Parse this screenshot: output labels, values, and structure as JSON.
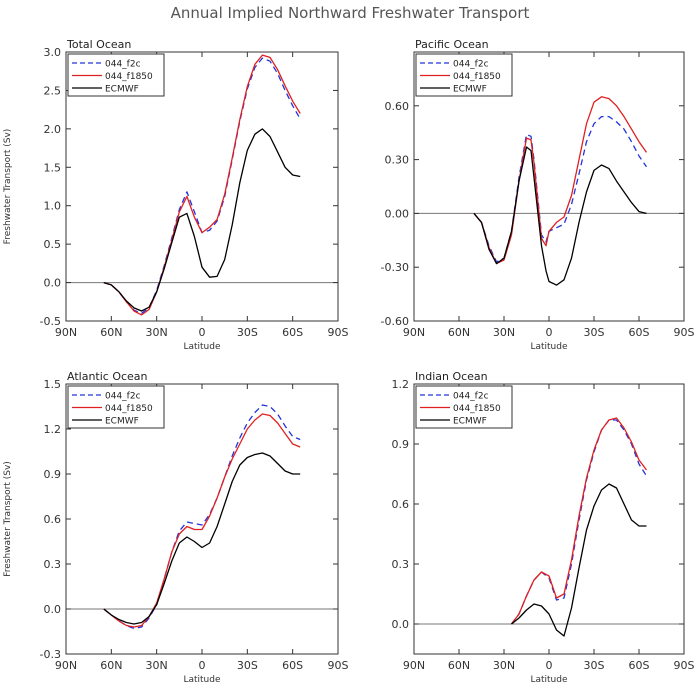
{
  "figure": {
    "title": "Annual Implied Northward Freshwater Transport"
  },
  "colors": {
    "f2c": "#2233dd",
    "f1850": "#e02020",
    "ecmwf": "#000000",
    "zero_line": "#777777",
    "frame": "#333333"
  },
  "chart_data": [
    {
      "type": "line",
      "title": "Total Ocean",
      "xlabel": "Latitude",
      "ylabel": "Freshwater Transport (Sv)",
      "xlim": [
        -90,
        90
      ],
      "xticks": [
        -90,
        -60,
        -30,
        0,
        30,
        60,
        90
      ],
      "xtick_labels": [
        "90N",
        "60N",
        "30N",
        "0",
        "30S",
        "60S",
        "90S"
      ],
      "ylim": [
        -0.5,
        3.0
      ],
      "yticks": [
        -0.5,
        0.0,
        0.5,
        1.0,
        1.5,
        2.0,
        2.5,
        3.0
      ],
      "ytick_labels": [
        "-0.5",
        "0.0",
        "0.5",
        "1.0",
        "1.5",
        "2.0",
        "2.5",
        "3.0"
      ],
      "legend": [
        "044_f2c",
        "044_f1850",
        "ECMWF"
      ],
      "series": [
        {
          "name": "044_f2c",
          "style": "dashed",
          "color_key": "f2c",
          "x": [
            -65,
            -60,
            -55,
            -50,
            -45,
            -40,
            -35,
            -30,
            -25,
            -20,
            -15,
            -10,
            -5,
            0,
            5,
            10,
            15,
            20,
            25,
            30,
            35,
            40,
            45,
            50,
            55,
            60,
            65
          ],
          "y": [
            0.0,
            -0.03,
            -0.12,
            -0.25,
            -0.36,
            -0.4,
            -0.33,
            -0.1,
            0.22,
            0.58,
            0.95,
            1.18,
            0.92,
            0.65,
            0.68,
            0.8,
            1.12,
            1.6,
            2.1,
            2.52,
            2.8,
            2.92,
            2.88,
            2.72,
            2.5,
            2.3,
            2.13
          ]
        },
        {
          "name": "044_f1850",
          "style": "solid",
          "color_key": "f1850",
          "x": [
            -65,
            -60,
            -55,
            -50,
            -45,
            -40,
            -35,
            -30,
            -25,
            -20,
            -15,
            -10,
            -5,
            0,
            5,
            10,
            15,
            20,
            25,
            30,
            35,
            40,
            45,
            50,
            55,
            60,
            65
          ],
          "y": [
            0.0,
            -0.03,
            -0.12,
            -0.25,
            -0.37,
            -0.42,
            -0.35,
            -0.12,
            0.2,
            0.55,
            0.92,
            1.12,
            0.85,
            0.65,
            0.72,
            0.82,
            1.15,
            1.62,
            2.12,
            2.55,
            2.84,
            2.96,
            2.93,
            2.77,
            2.56,
            2.36,
            2.2
          ]
        },
        {
          "name": "ECMWF",
          "style": "solid",
          "color_key": "ecmwf",
          "x": [
            -65,
            -60,
            -55,
            -50,
            -45,
            -40,
            -35,
            -30,
            -25,
            -20,
            -15,
            -10,
            -5,
            0,
            5,
            10,
            15,
            20,
            25,
            30,
            35,
            40,
            45,
            50,
            55,
            60,
            65
          ],
          "y": [
            0.0,
            -0.03,
            -0.12,
            -0.24,
            -0.33,
            -0.37,
            -0.32,
            -0.12,
            0.18,
            0.52,
            0.85,
            0.9,
            0.6,
            0.2,
            0.07,
            0.08,
            0.3,
            0.75,
            1.3,
            1.72,
            1.93,
            2.0,
            1.9,
            1.7,
            1.5,
            1.4,
            1.38
          ]
        }
      ]
    },
    {
      "type": "line",
      "title": "Pacific Ocean",
      "xlabel": "Latitude",
      "ylabel": "",
      "xlim": [
        -90,
        90
      ],
      "xticks": [
        -90,
        -60,
        -30,
        0,
        30,
        60,
        90
      ],
      "xtick_labels": [
        "90N",
        "60N",
        "30N",
        "0",
        "30S",
        "60S",
        "90S"
      ],
      "ylim": [
        -0.6,
        0.9
      ],
      "yticks": [
        -0.6,
        -0.3,
        0.0,
        0.3,
        0.6
      ],
      "ytick_labels": [
        "-0.60",
        "-0.30",
        "0.00",
        "0.30",
        "0.60"
      ],
      "legend": [
        "044_f2c",
        "044_f1850",
        "ECMWF"
      ],
      "series": [
        {
          "name": "044_f2c",
          "style": "dashed",
          "color_key": "f2c",
          "x": [
            -50,
            -45,
            -40,
            -35,
            -30,
            -25,
            -20,
            -15,
            -12,
            -10,
            -5,
            -2,
            0,
            5,
            10,
            15,
            20,
            25,
            30,
            35,
            40,
            45,
            50,
            55,
            60,
            65
          ],
          "y": [
            0.0,
            -0.05,
            -0.18,
            -0.27,
            -0.25,
            -0.1,
            0.2,
            0.44,
            0.43,
            0.3,
            -0.12,
            -0.16,
            -0.1,
            -0.08,
            -0.06,
            0.05,
            0.22,
            0.4,
            0.5,
            0.54,
            0.54,
            0.51,
            0.47,
            0.4,
            0.32,
            0.26
          ]
        },
        {
          "name": "044_f1850",
          "style": "solid",
          "color_key": "f1850",
          "x": [
            -50,
            -45,
            -40,
            -35,
            -30,
            -25,
            -20,
            -15,
            -12,
            -10,
            -5,
            -2,
            0,
            5,
            10,
            15,
            20,
            25,
            30,
            35,
            40,
            45,
            50,
            55,
            60,
            65
          ],
          "y": [
            0.0,
            -0.05,
            -0.19,
            -0.28,
            -0.26,
            -0.12,
            0.18,
            0.42,
            0.41,
            0.28,
            -0.14,
            -0.18,
            -0.1,
            -0.05,
            -0.02,
            0.1,
            0.3,
            0.5,
            0.62,
            0.65,
            0.64,
            0.6,
            0.54,
            0.47,
            0.4,
            0.34
          ]
        },
        {
          "name": "ECMWF",
          "style": "solid",
          "color_key": "ecmwf",
          "x": [
            -50,
            -45,
            -40,
            -35,
            -30,
            -25,
            -20,
            -15,
            -12,
            -10,
            -5,
            -2,
            0,
            5,
            10,
            15,
            20,
            25,
            30,
            35,
            40,
            45,
            50,
            55,
            60,
            65
          ],
          "y": [
            0.0,
            -0.05,
            -0.2,
            -0.28,
            -0.25,
            -0.1,
            0.18,
            0.37,
            0.35,
            0.2,
            -0.18,
            -0.32,
            -0.38,
            -0.4,
            -0.37,
            -0.25,
            -0.05,
            0.12,
            0.24,
            0.27,
            0.25,
            0.18,
            0.12,
            0.06,
            0.01,
            0.0
          ]
        }
      ]
    },
    {
      "type": "line",
      "title": "Atlantic Ocean",
      "xlabel": "Latitude",
      "ylabel": "Freshwater Transport (Sv)",
      "xlim": [
        -90,
        90
      ],
      "xticks": [
        -90,
        -60,
        -30,
        0,
        30,
        60,
        90
      ],
      "xtick_labels": [
        "90N",
        "60N",
        "30N",
        "0",
        "30S",
        "60S",
        "90S"
      ],
      "ylim": [
        -0.3,
        1.5
      ],
      "yticks": [
        -0.3,
        0.0,
        0.3,
        0.6,
        0.9,
        1.2,
        1.5
      ],
      "ytick_labels": [
        "-0.3",
        "0.0",
        "0.3",
        "0.6",
        "0.9",
        "1.2",
        "1.5"
      ],
      "legend": [
        "044_f2c",
        "044_f1850",
        "ECMWF"
      ],
      "series": [
        {
          "name": "044_f2c",
          "style": "dashed",
          "color_key": "f2c",
          "x": [
            -65,
            -60,
            -55,
            -50,
            -45,
            -40,
            -35,
            -30,
            -25,
            -20,
            -15,
            -10,
            -5,
            0,
            5,
            10,
            15,
            20,
            25,
            30,
            35,
            40,
            45,
            50,
            55,
            60,
            65
          ],
          "y": [
            0.0,
            -0.04,
            -0.08,
            -0.11,
            -0.13,
            -0.12,
            -0.06,
            0.03,
            0.2,
            0.38,
            0.52,
            0.58,
            0.57,
            0.56,
            0.63,
            0.74,
            0.88,
            1.02,
            1.14,
            1.24,
            1.31,
            1.36,
            1.35,
            1.3,
            1.22,
            1.15,
            1.13
          ]
        },
        {
          "name": "044_f1850",
          "style": "solid",
          "color_key": "f1850",
          "x": [
            -65,
            -60,
            -55,
            -50,
            -45,
            -40,
            -35,
            -30,
            -25,
            -20,
            -15,
            -10,
            -5,
            0,
            5,
            10,
            15,
            20,
            25,
            30,
            35,
            40,
            45,
            50,
            55,
            60,
            65
          ],
          "y": [
            0.0,
            -0.04,
            -0.08,
            -0.11,
            -0.12,
            -0.11,
            -0.05,
            0.04,
            0.2,
            0.38,
            0.5,
            0.55,
            0.53,
            0.53,
            0.62,
            0.74,
            0.88,
            1.0,
            1.1,
            1.2,
            1.26,
            1.3,
            1.29,
            1.24,
            1.17,
            1.1,
            1.08
          ]
        },
        {
          "name": "ECMWF",
          "style": "solid",
          "color_key": "ecmwf",
          "x": [
            -65,
            -60,
            -55,
            -50,
            -45,
            -40,
            -35,
            -30,
            -25,
            -20,
            -15,
            -10,
            -5,
            0,
            5,
            10,
            15,
            20,
            25,
            30,
            35,
            40,
            45,
            50,
            55,
            60,
            65
          ],
          "y": [
            0.0,
            -0.04,
            -0.07,
            -0.09,
            -0.1,
            -0.09,
            -0.05,
            0.03,
            0.17,
            0.32,
            0.44,
            0.48,
            0.45,
            0.41,
            0.44,
            0.55,
            0.7,
            0.85,
            0.96,
            1.01,
            1.03,
            1.04,
            1.02,
            0.97,
            0.92,
            0.9,
            0.9
          ]
        }
      ]
    },
    {
      "type": "line",
      "title": "Indian Ocean",
      "xlabel": "Latitude",
      "ylabel": "",
      "xlim": [
        -90,
        90
      ],
      "xticks": [
        -90,
        -60,
        -30,
        0,
        30,
        60,
        90
      ],
      "xtick_labels": [
        "90N",
        "60N",
        "30N",
        "0",
        "30S",
        "60S",
        "90S"
      ],
      "ylim": [
        -0.15,
        1.2
      ],
      "yticks": [
        0.0,
        0.3,
        0.6,
        0.9,
        1.2
      ],
      "ytick_labels": [
        "0.0",
        "0.3",
        "0.6",
        "0.9",
        "1.2"
      ],
      "legend": [
        "044_f2c",
        "044_f1850",
        "ECMWF"
      ],
      "series": [
        {
          "name": "044_f2c",
          "style": "dashed",
          "color_key": "f2c",
          "x": [
            -25,
            -20,
            -15,
            -10,
            -5,
            0,
            5,
            10,
            15,
            20,
            25,
            30,
            35,
            40,
            45,
            50,
            55,
            60,
            65
          ],
          "y": [
            0.0,
            0.05,
            0.14,
            0.22,
            0.26,
            0.23,
            0.12,
            0.13,
            0.3,
            0.52,
            0.72,
            0.86,
            0.97,
            1.02,
            1.02,
            0.97,
            0.9,
            0.8,
            0.74
          ]
        },
        {
          "name": "044_f1850",
          "style": "solid",
          "color_key": "f1850",
          "x": [
            -25,
            -20,
            -15,
            -10,
            -5,
            0,
            5,
            10,
            15,
            20,
            25,
            30,
            35,
            40,
            45,
            50,
            55,
            60,
            65
          ],
          "y": [
            0.0,
            0.05,
            0.14,
            0.22,
            0.26,
            0.24,
            0.13,
            0.15,
            0.32,
            0.54,
            0.73,
            0.87,
            0.97,
            1.02,
            1.03,
            0.98,
            0.91,
            0.82,
            0.77
          ]
        },
        {
          "name": "ECMWF",
          "style": "solid",
          "color_key": "ecmwf",
          "x": [
            -25,
            -20,
            -15,
            -10,
            -5,
            0,
            5,
            10,
            15,
            20,
            25,
            30,
            35,
            40,
            45,
            50,
            55,
            60,
            65
          ],
          "y": [
            0.0,
            0.03,
            0.07,
            0.1,
            0.09,
            0.05,
            -0.03,
            -0.06,
            0.08,
            0.28,
            0.47,
            0.59,
            0.67,
            0.7,
            0.68,
            0.6,
            0.52,
            0.49,
            0.49
          ]
        }
      ]
    }
  ]
}
